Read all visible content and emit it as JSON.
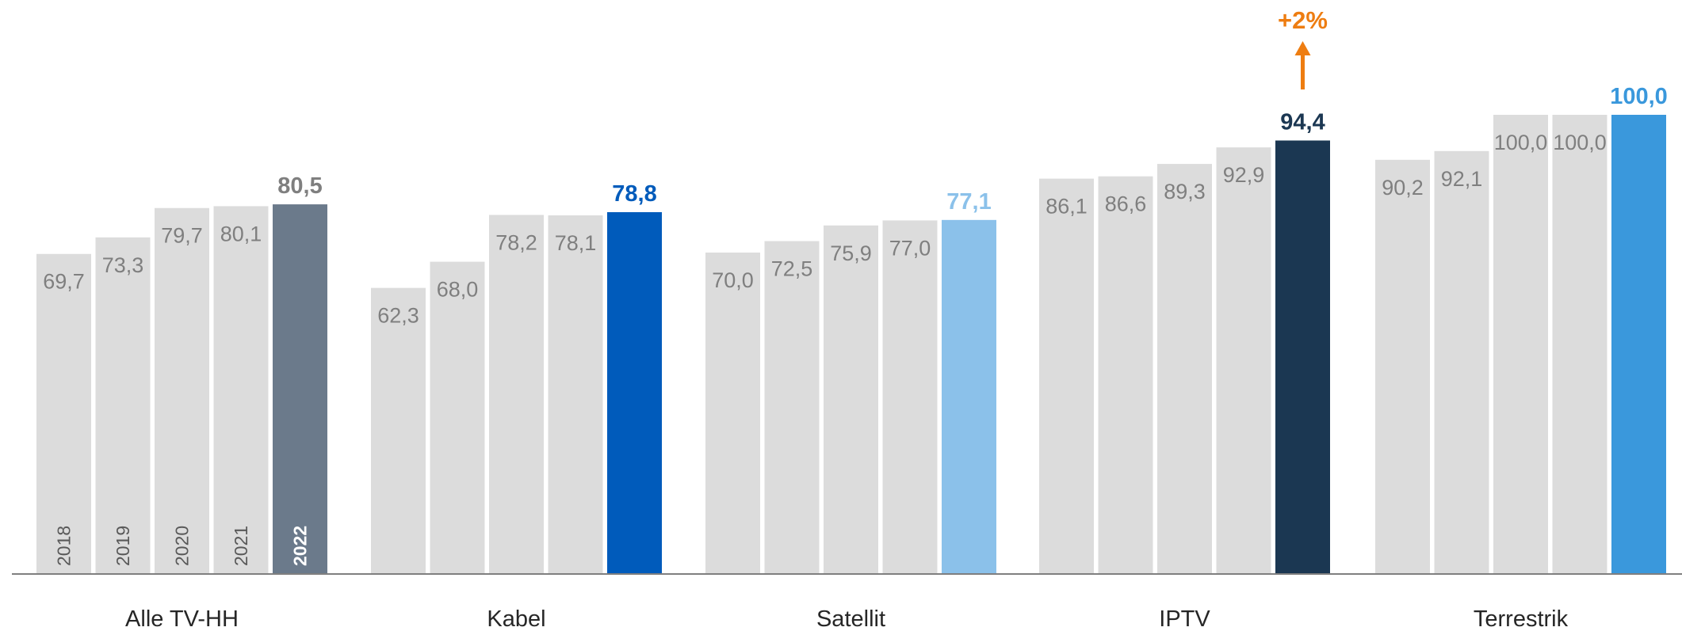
{
  "chart_data": {
    "type": "bar",
    "groups": [
      {
        "name": "Alle TV-HH",
        "values": [
          69.7,
          73.3,
          79.7,
          80.1,
          80.5
        ],
        "labels": [
          "69,7",
          "73,3",
          "79,7",
          "80,1",
          "80,5"
        ],
        "highlight_color": "#6b7a8b"
      },
      {
        "name": "Kabel",
        "values": [
          62.3,
          68.0,
          78.2,
          78.1,
          78.8
        ],
        "labels": [
          "62,3",
          "68,0",
          "78,2",
          "78,1",
          "78,8"
        ],
        "highlight_color": "#005bbb"
      },
      {
        "name": "Satellit",
        "values": [
          70.0,
          72.5,
          75.9,
          77.0,
          77.1
        ],
        "labels": [
          "70,0",
          "72,5",
          "75,9",
          "77,0",
          "77,1"
        ],
        "highlight_color": "#8bc1ea"
      },
      {
        "name": "IPTV",
        "values": [
          86.1,
          86.6,
          89.3,
          92.9,
          94.4
        ],
        "labels": [
          "86,1",
          "86,6",
          "89,3",
          "92,9",
          "94,4"
        ],
        "highlight_color": "#1b3752"
      },
      {
        "name": "Terrestrik",
        "values": [
          90.2,
          92.1,
          100.0,
          100.0,
          100.0
        ],
        "labels": [
          "90,2",
          "92,1",
          "100,0",
          "100,0",
          "100,0"
        ],
        "highlight_color": "#3a98dc"
      }
    ],
    "years": [
      "2018",
      "2019",
      "2020",
      "2021",
      "2022"
    ],
    "ylim": [
      0,
      100
    ],
    "grid": false,
    "annotations": [
      {
        "group": "IPTV",
        "text": "+2%",
        "color": "#ee7d11",
        "arrow": "up"
      }
    ]
  },
  "colors": {
    "history_bar": "#dcdcdc",
    "history_label": "#7f7f7f",
    "year_label": "#595959",
    "axis": "#7f7f7f",
    "category_label": "#262626"
  }
}
